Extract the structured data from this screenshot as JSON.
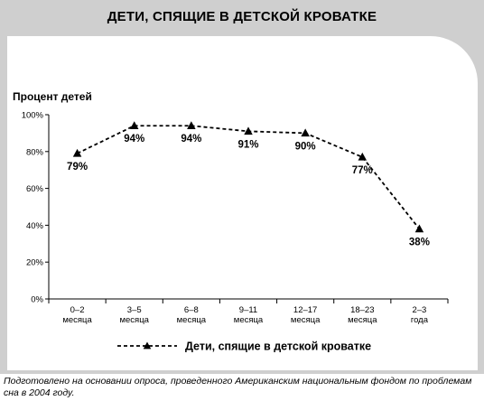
{
  "chart_data": {
    "type": "line",
    "title": "ДЕТИ, СПЯЩИЕ В ДЕТСКОЙ КРОВАТКЕ",
    "ylabel": "Процент детей",
    "xlabel": "",
    "ylim": [
      0,
      100
    ],
    "yticks": [
      "0%",
      "20%",
      "40%",
      "60%",
      "80%",
      "100%"
    ],
    "categories": [
      [
        "0–2",
        "месяца"
      ],
      [
        "3–5",
        "месяца"
      ],
      [
        "6–8",
        "месяца"
      ],
      [
        "9–11",
        "месяца"
      ],
      [
        "12–17",
        "месяца"
      ],
      [
        "18–23",
        "месяца"
      ],
      [
        "2–3",
        "года"
      ]
    ],
    "series": [
      {
        "name": "Дети, спящие в детской кроватке",
        "values": [
          79,
          94,
          94,
          91,
          90,
          77,
          38
        ],
        "labels": [
          "79%",
          "94%",
          "94%",
          "91%",
          "90%",
          "77%",
          "38%"
        ],
        "line_style": "dashed",
        "marker": "triangle",
        "color": "#000000"
      }
    ],
    "legend_placement": "bottom-center",
    "grid": false
  },
  "footnote": "Подготовлено на основании опроса, проведенного Американским национальным фондом по проблемам сна в 2004 году."
}
